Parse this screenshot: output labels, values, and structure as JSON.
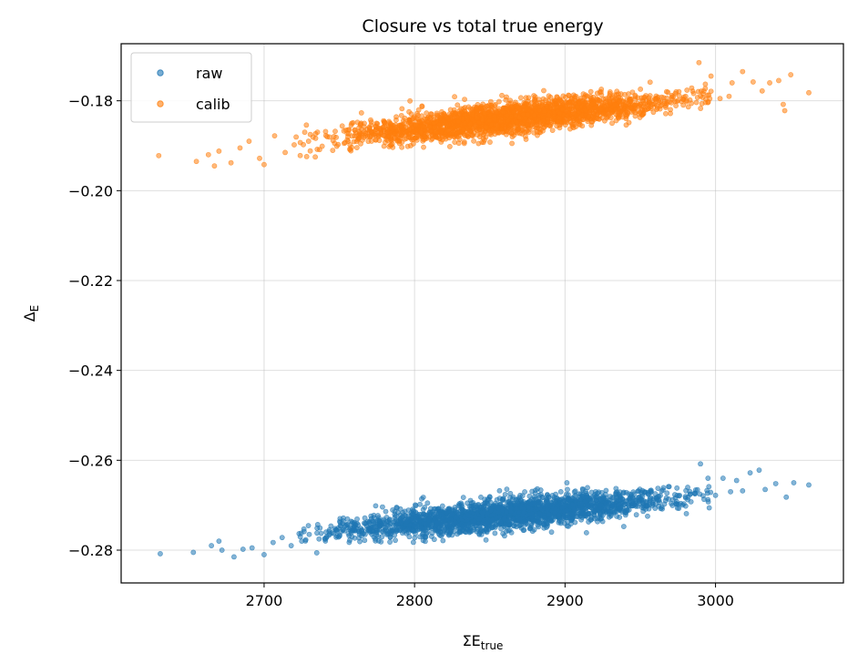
{
  "chart_data": {
    "type": "scatter",
    "title": "Closure vs total true energy",
    "xlabel": {
      "base": "ΣE",
      "sub": "true"
    },
    "ylabel": {
      "base": "Δ",
      "sub": "E"
    },
    "xlim": [
      2605,
      3085
    ],
    "ylim": [
      -0.2873,
      -0.1673
    ],
    "xticks": [
      2700,
      2800,
      2900,
      3000
    ],
    "xtick_labels": [
      "2700",
      "2800",
      "2900",
      "3000"
    ],
    "yticks": [
      -0.28,
      -0.26,
      -0.24,
      -0.22,
      -0.2,
      -0.18
    ],
    "ytick_labels": [
      "−0.28",
      "−0.26",
      "−0.24",
      "−0.22",
      "−0.20",
      "−0.18"
    ],
    "grid": true,
    "legend": {
      "placement": "top-left",
      "entries": [
        "raw",
        "calib"
      ]
    },
    "series": [
      {
        "name": "raw",
        "color": "#1f77b4",
        "trend": {
          "x": [
            2630,
            3062
          ],
          "y": [
            -0.2795,
            -0.2655
          ]
        },
        "core_x_range": [
          2740,
          2985
        ],
        "points": [
          [
            2631,
            -0.2808
          ],
          [
            2653,
            -0.2805
          ],
          [
            2665,
            -0.279
          ],
          [
            2670,
            -0.278
          ],
          [
            2672,
            -0.28
          ],
          [
            2680,
            -0.2815
          ],
          [
            2686,
            -0.2798
          ],
          [
            2692,
            -0.2795
          ],
          [
            2700,
            -0.281
          ],
          [
            2706,
            -0.2783
          ],
          [
            2712,
            -0.2772
          ],
          [
            2718,
            -0.279
          ],
          [
            2725,
            -0.278
          ],
          [
            2730,
            -0.2765
          ],
          [
            2735,
            -0.2806
          ],
          [
            2990,
            -0.2608
          ],
          [
            2995,
            -0.264
          ],
          [
            3005,
            -0.264
          ],
          [
            3010,
            -0.267
          ],
          [
            3018,
            -0.2668
          ],
          [
            3023,
            -0.2628
          ],
          [
            3029,
            -0.2622
          ],
          [
            3033,
            -0.2665
          ],
          [
            3040,
            -0.2652
          ],
          [
            3047,
            -0.2682
          ],
          [
            3052,
            -0.265
          ],
          [
            3062,
            -0.2655
          ],
          [
            3000,
            -0.2678
          ],
          [
            3014,
            -0.2645
          ]
        ]
      },
      {
        "name": "calib",
        "color": "#ff7f0e",
        "trend": {
          "x": [
            2630,
            3062
          ],
          "y": [
            -0.1925,
            -0.1765
          ]
        },
        "core_x_range": [
          2740,
          2985
        ],
        "points": [
          [
            2630,
            -0.1922
          ],
          [
            2655,
            -0.1935
          ],
          [
            2663,
            -0.192
          ],
          [
            2667,
            -0.1945
          ],
          [
            2670,
            -0.1912
          ],
          [
            2678,
            -0.1938
          ],
          [
            2684,
            -0.1905
          ],
          [
            2690,
            -0.189
          ],
          [
            2697,
            -0.1928
          ],
          [
            2700,
            -0.1942
          ],
          [
            2707,
            -0.1878
          ],
          [
            2714,
            -0.1915
          ],
          [
            2720,
            -0.1898
          ],
          [
            2727,
            -0.187
          ],
          [
            2734,
            -0.1925
          ],
          [
            2989,
            -0.1715
          ],
          [
            2997,
            -0.1745
          ],
          [
            3003,
            -0.1795
          ],
          [
            3011,
            -0.176
          ],
          [
            3018,
            -0.1735
          ],
          [
            3025,
            -0.1758
          ],
          [
            3031,
            -0.1778
          ],
          [
            3036,
            -0.176
          ],
          [
            3042,
            -0.1755
          ],
          [
            3045,
            -0.1808
          ],
          [
            3050,
            -0.1742
          ],
          [
            3046,
            -0.1822
          ],
          [
            3062,
            -0.1782
          ],
          [
            3009,
            -0.179
          ]
        ]
      }
    ]
  }
}
